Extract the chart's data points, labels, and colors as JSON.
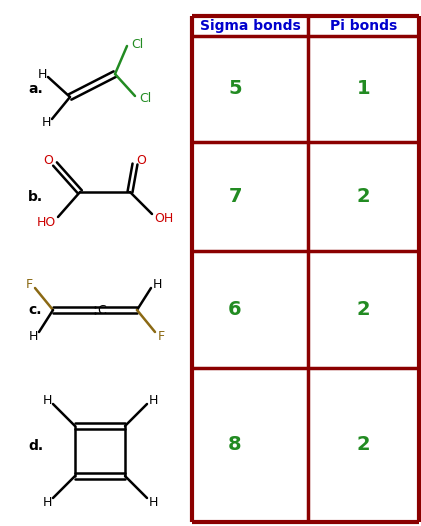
{
  "table_header_sigma": "Sigma bonds",
  "table_header_pi": "Pi bonds",
  "header_color": "#0000CD",
  "table_border_color": "#8B0000",
  "table_values_color": "#228B22",
  "rows": [
    {
      "label": "a.",
      "sigma": "5",
      "pi": "1"
    },
    {
      "label": "b.",
      "sigma": "7",
      "pi": "2"
    },
    {
      "label": "c.",
      "sigma": "6",
      "pi": "2"
    },
    {
      "label": "d.",
      "sigma": "8",
      "pi": "2"
    }
  ],
  "fig_width": 4.21,
  "fig_height": 5.26,
  "dpi": 100,
  "background_color": "#ffffff",
  "cl_color": "#228B22",
  "o_color": "#CC0000",
  "ho_color": "#CC0000",
  "f_color": "#8B6914",
  "h_color": "#000000",
  "c_color": "#000000",
  "bond_color": "#000000",
  "label_color": "#000000"
}
